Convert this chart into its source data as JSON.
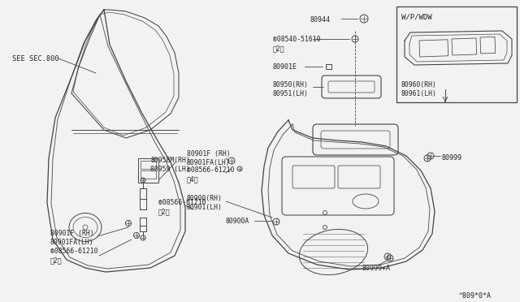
{
  "bg_color": "#f2f2f2",
  "line_color": "#444444",
  "labels": {
    "see_sec": "SEE SEC.800",
    "p80944": "80944",
    "p08540": "®08540-51610\n（2）",
    "p80901E": "80901E",
    "p8095x": "80950(RH)\n80951(LH)",
    "p80960": "80960(RH)\n80961(LH)",
    "p80999": "80999",
    "p80999A": "80999+A",
    "p80900": "80900(RH)\n80901(LH)",
    "p80900A": "80900A",
    "p80901F_r": "80901F (RH)\n80901FA(LH)",
    "p08566_4": "®08566-61210\n（4）",
    "p80958M": "80958M(RH)\n80959 (LH)",
    "p80901F_l": "80901F (RH)\n80901FA(LH)",
    "p08566_2a": "®08566-61210\n（2）",
    "p08566_2b": "®08566-61210\n（2）",
    "wp_wdw": "W/P/WDW",
    "diagram_code": "^809*0*A"
  }
}
